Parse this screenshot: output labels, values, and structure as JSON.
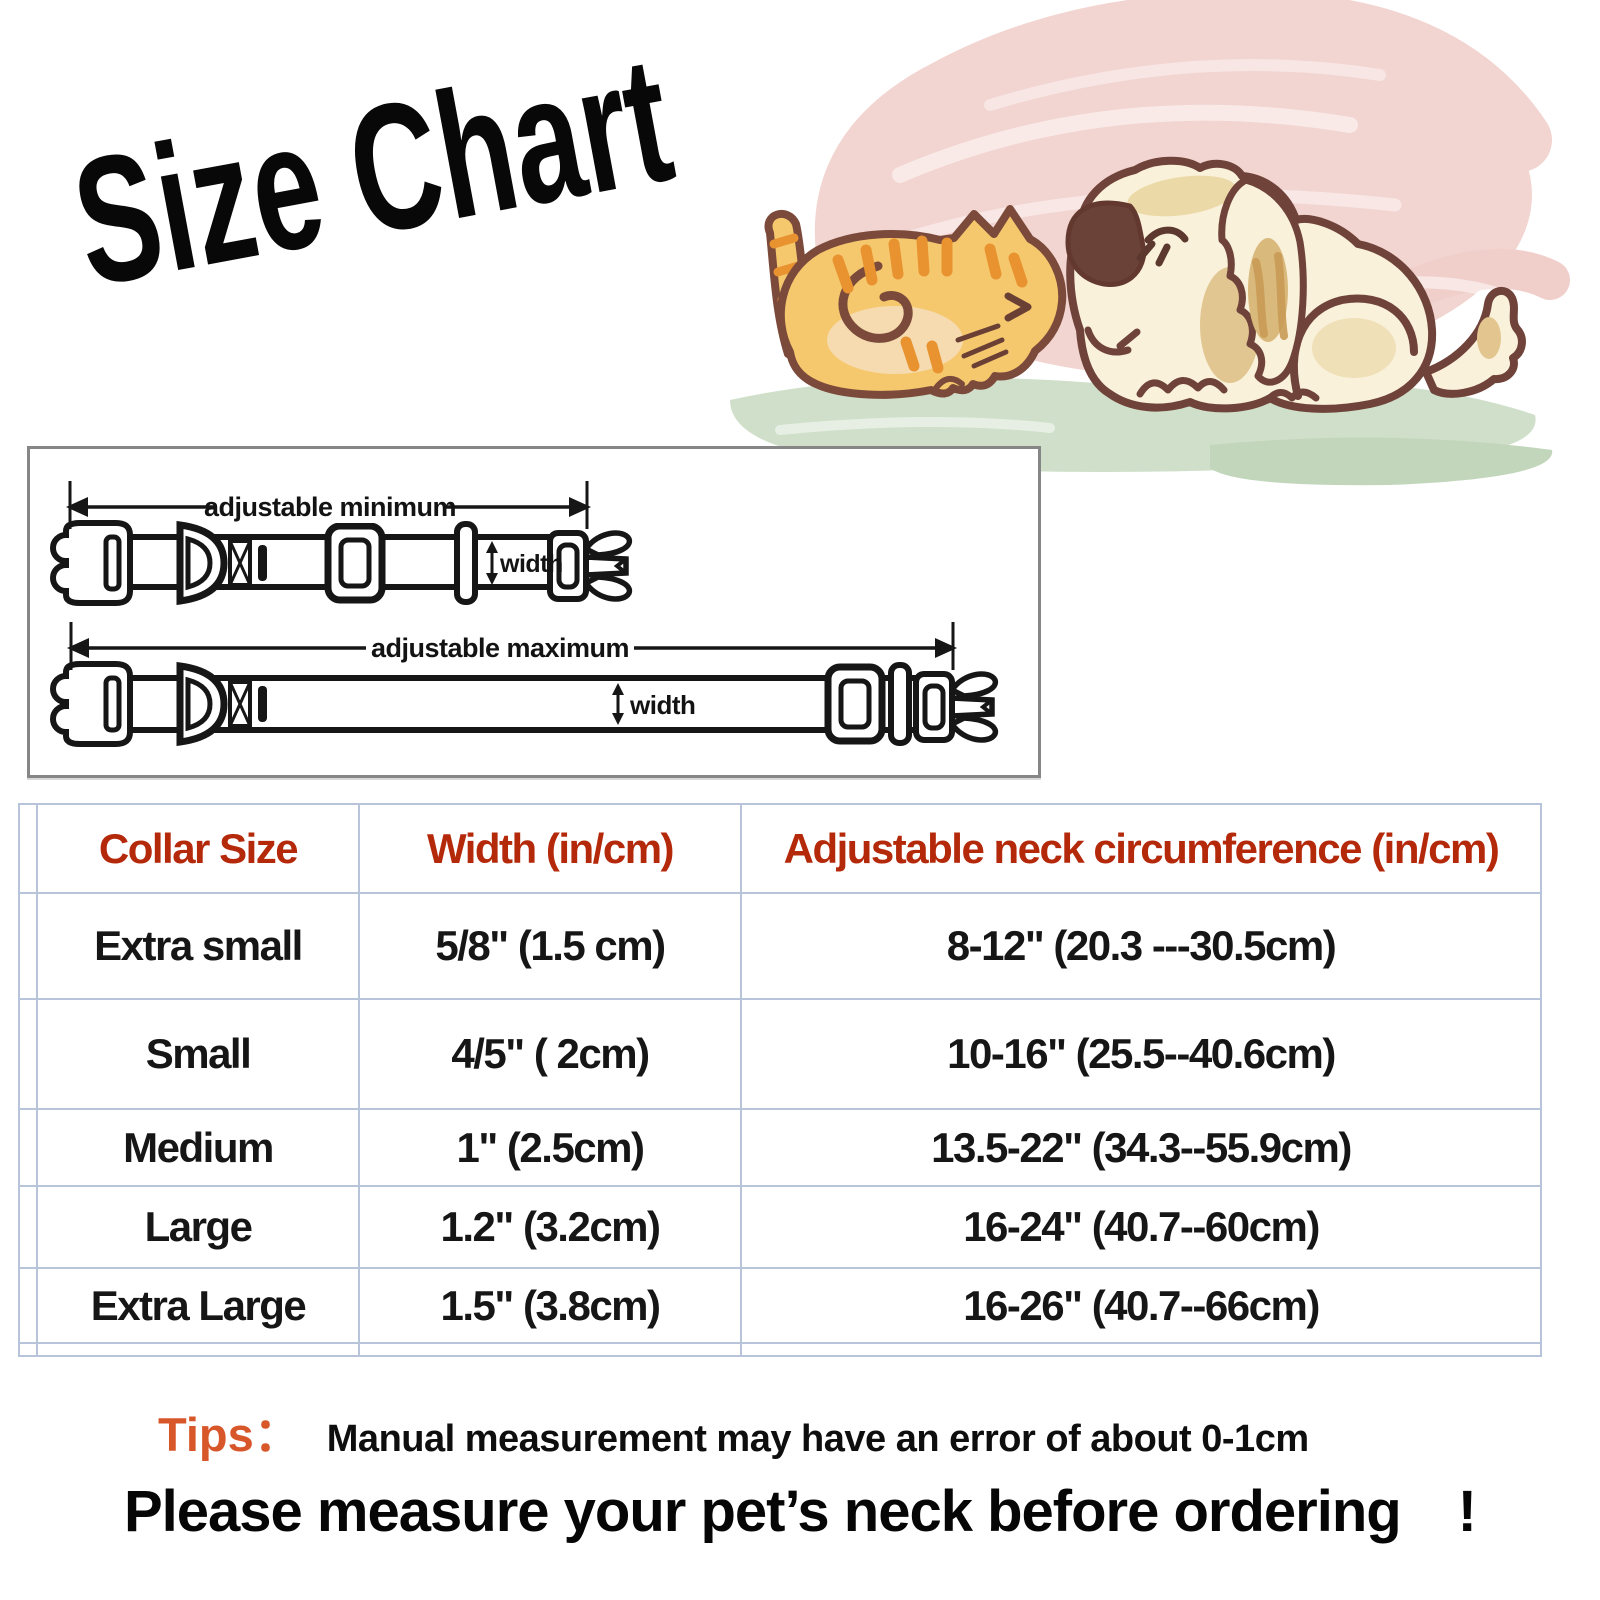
{
  "title": "Size Chart",
  "diagram": {
    "adjustable_minimum": "adjustable minimum",
    "adjustable_maximum": "adjustable maximum",
    "width_top": "width",
    "width_bottom": "width"
  },
  "table": {
    "headers": [
      "Collar Size",
      "Width (in/cm)",
      "Adjustable neck circumference  (in/cm)"
    ],
    "rows": [
      [
        "Extra small",
        "5/8\" (1.5 cm)",
        "8-12\" (20.3 ---30.5cm)"
      ],
      [
        "Small",
        "4/5\" ( 2cm)",
        "10-16\" (25.5--40.6cm)"
      ],
      [
        "Medium",
        "1\" (2.5cm)",
        "13.5-22\" (34.3--55.9cm)"
      ],
      [
        "Large",
        "1.2\" (3.2cm)",
        "16-24\" (40.7--60cm)"
      ],
      [
        "Extra Large",
        "1.5\" (3.8cm)",
        "16-26\" (40.7--66cm)"
      ]
    ]
  },
  "tips": {
    "label": "Tips：",
    "text": "Manual measurement may have an error of about 0-1cm"
  },
  "footer": "Please measure your pet’s neck before ordering　!",
  "colors": {
    "header_text": "#b5290b",
    "tips_label": "#d8572a",
    "table_grid": "#b7c4d9",
    "cat_body": "#f6c86e",
    "cat_stripes": "#e8932f",
    "dog_body": "#f9f1da",
    "dog_ear": "#6b4238",
    "outline_brown": "#6f4339",
    "scribble_pink": "#f2d4d0",
    "grass_green": "#cfdfc9"
  }
}
